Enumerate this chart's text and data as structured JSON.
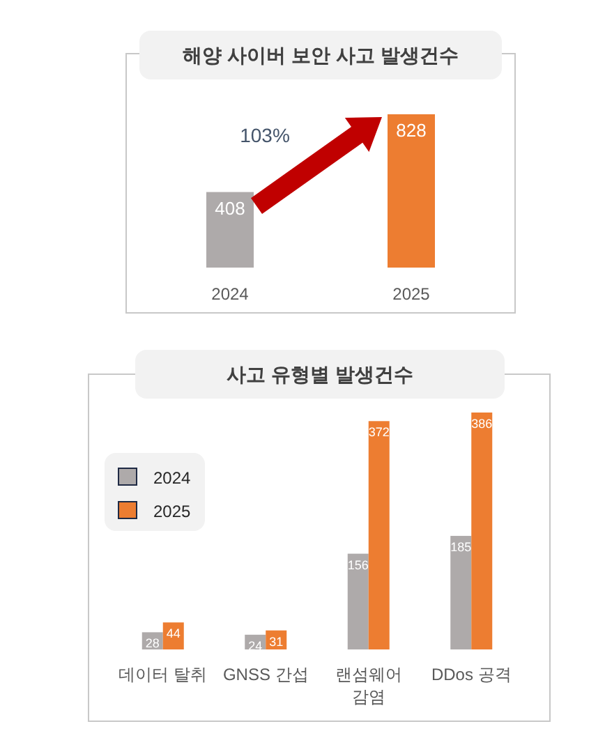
{
  "chart_data": [
    {
      "type": "bar",
      "title": "해양 사이버 보안 사고 발생건수",
      "categories": [
        "2024",
        "2025"
      ],
      "values": [
        408,
        828
      ],
      "colors": [
        "#aeaaaa",
        "#ed7d31"
      ],
      "data_labels": true,
      "annotations": [
        "103%"
      ]
    },
    {
      "type": "bar",
      "title": "사고 유형별 발생건수",
      "categories": [
        "데이터 탈취",
        "GNSS 간섭",
        "랜섬웨어 감염",
        "DDos 공격"
      ],
      "series": [
        {
          "name": "2024",
          "color": "#aeaaaa",
          "values": [
            28,
            24,
            156,
            185
          ]
        },
        {
          "name": "2025",
          "color": "#ed7d31",
          "values": [
            44,
            31,
            372,
            386
          ]
        }
      ],
      "data_labels": true,
      "legend": "left"
    }
  ]
}
